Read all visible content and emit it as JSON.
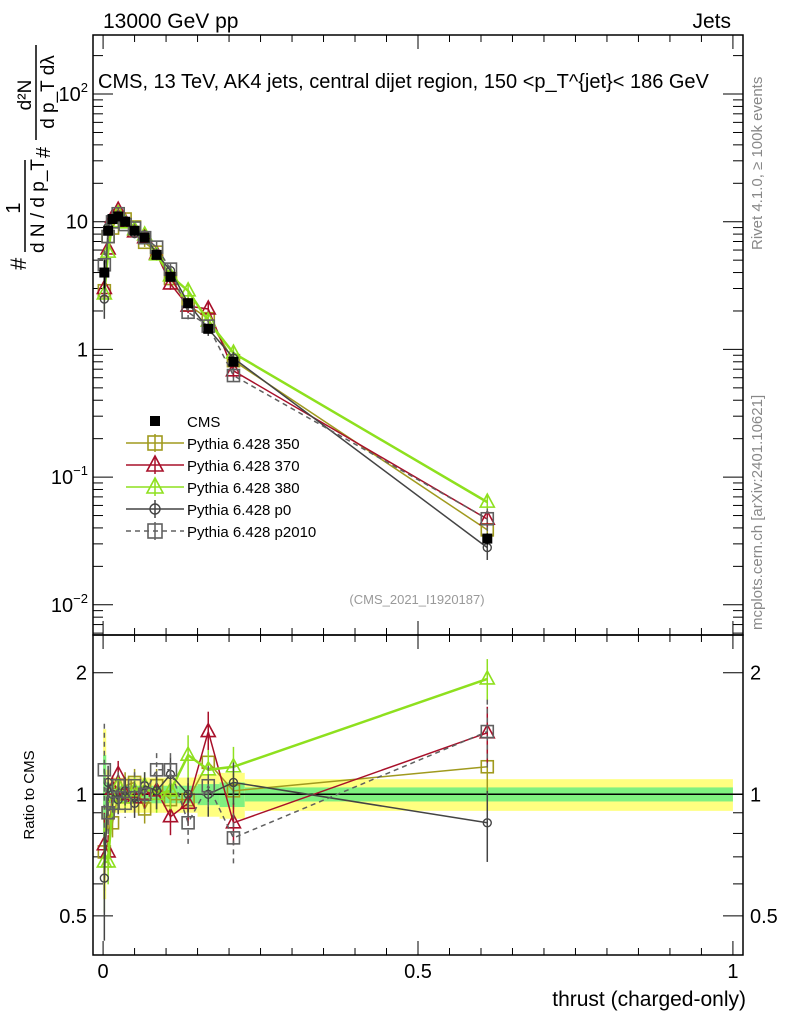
{
  "header": {
    "left": "13000 GeV pp",
    "right": "Jets"
  },
  "side_text": {
    "top": "Rivet 4.1.0, ≥ 100k events",
    "bottom": "mcplots.cern.ch [arXiv:2401.10621]"
  },
  "chart_data": [
    {
      "type": "line",
      "title": "CMS, 13 TeV, AK4 jets, central dijet region, 150 <p_T^{jet}< 186 GeV",
      "title_parts": {
        "main": "CMS, 13 TeV, AK4 jets, central dijet region, 150 <p",
        "sup": "{jet}",
        "sub": "T",
        "end": "}< 186 GeV"
      },
      "ylabel": {
        "num": "1",
        "den": "d N / d p_T",
        "hash": "#",
        "num2": "d²N",
        "den2": "d p_T dλ"
      },
      "yscale": "log",
      "ylim": [
        0.0058,
        290
      ],
      "xlim": [
        -0.016,
        1.016
      ],
      "yticks": [
        {
          "v": 100,
          "label": "10",
          "exp": "2"
        },
        {
          "v": 10,
          "label": "10",
          "exp": ""
        },
        {
          "v": 1,
          "label": "1",
          "exp": ""
        },
        {
          "v": 0.1,
          "label": "10",
          "exp": "−1"
        },
        {
          "v": 0.01,
          "label": "10",
          "exp": "−2"
        }
      ],
      "annotation": "(CMS_2021_I1920187)",
      "legend_position": "lower-left",
      "x": [
        0.002,
        0.008,
        0.015,
        0.024,
        0.035,
        0.05,
        0.066,
        0.085,
        0.107,
        0.135,
        0.167,
        0.207,
        0.61
      ],
      "cms": {
        "name": "CMS",
        "values": [
          4.0,
          8.5,
          10.5,
          11.0,
          10.0,
          8.5,
          7.5,
          5.5,
          3.7,
          2.3,
          1.45,
          0.8,
          0.033
        ],
        "rel_err": [
          0.25,
          0.08,
          0.05,
          0.05,
          0.05,
          0.05,
          0.05,
          0.05,
          0.05,
          0.05,
          0.06,
          0.07,
          0.1
        ]
      },
      "series": [
        {
          "name": "Pythia 6.428 350",
          "color": "#a09a1e",
          "marker": "square-open",
          "dashed": false,
          "ratio": [
            0.72,
            0.9,
            0.85,
            1.0,
            1.05,
            1.07,
            0.92,
            1.05,
            0.97,
            0.97,
            1.2,
            1.02,
            1.17
          ],
          "rel_err": [
            0.2,
            0.1,
            0.08,
            0.08,
            0.08,
            0.08,
            0.08,
            0.1,
            0.1,
            0.1,
            0.12,
            0.1,
            0.15
          ]
        },
        {
          "name": "Pythia 6.428 370",
          "color": "#a8102a",
          "marker": "triangle-open",
          "dashed": false,
          "ratio": [
            0.75,
            0.72,
            1.03,
            1.12,
            1.0,
            0.98,
            1.0,
            1.02,
            0.88,
            0.95,
            1.43,
            0.85,
            1.42
          ],
          "rel_err": [
            0.2,
            0.1,
            0.08,
            0.08,
            0.08,
            0.08,
            0.08,
            0.1,
            0.1,
            0.12,
            0.12,
            0.12,
            0.16
          ]
        },
        {
          "name": "Pythia 6.428 380",
          "color": "#8ee01e",
          "marker": "triangle-open",
          "dashed": false,
          "ratio": [
            0.68,
            0.68,
            0.95,
            1.05,
            0.98,
            1.02,
            1.05,
            1.0,
            1.02,
            1.25,
            1.15,
            1.17,
            1.93
          ],
          "rel_err": [
            0.25,
            0.12,
            0.08,
            0.08,
            0.08,
            0.08,
            0.08,
            0.1,
            0.1,
            0.12,
            0.12,
            0.12,
            0.12
          ]
        },
        {
          "name": "Pythia 6.428 p0",
          "color": "#444444",
          "marker": "circle-open",
          "dashed": false,
          "ratio": [
            0.62,
            1.07,
            1.0,
            0.97,
            1.02,
            0.95,
            1.05,
            1.02,
            1.12,
            1.0,
            1.0,
            1.07,
            0.85
          ],
          "rel_err": [
            0.3,
            0.1,
            0.08,
            0.08,
            0.08,
            0.08,
            0.08,
            0.1,
            0.1,
            0.1,
            0.12,
            0.12,
            0.2
          ]
        },
        {
          "name": "Pythia 6.428 p2010",
          "color": "#606060",
          "marker": "square-open",
          "dashed": true,
          "ratio": [
            1.15,
            0.9,
            0.95,
            1.05,
            0.95,
            1.05,
            1.0,
            1.15,
            1.15,
            0.85,
            1.05,
            0.78,
            1.43
          ],
          "rel_err": [
            0.3,
            0.12,
            0.08,
            0.08,
            0.08,
            0.08,
            0.08,
            0.1,
            0.1,
            0.12,
            0.12,
            0.15,
            0.2
          ]
        }
      ]
    },
    {
      "type": "line",
      "ylabel": "Ratio to CMS",
      "xlabel": "thrust (charged-only)",
      "yscale": "log",
      "ylim": [
        0.4,
        2.48
      ],
      "yticks": [
        {
          "v": 2,
          "label": "2"
        },
        {
          "v": 1,
          "label": "1"
        },
        {
          "v": 0.5,
          "label": "0.5"
        }
      ],
      "xticks": [
        {
          "v": 0,
          "label": "0"
        },
        {
          "v": 0.5,
          "label": "0.5"
        },
        {
          "v": 1,
          "label": "1"
        }
      ],
      "bands": {
        "bin_edges": [
          0,
          0.005,
          0.01,
          0.02,
          0.03,
          0.04,
          0.058,
          0.075,
          0.095,
          0.12,
          0.15,
          0.185,
          0.225,
          1.0
        ],
        "yellow_rel": [
          0.45,
          0.15,
          0.1,
          0.1,
          0.1,
          0.1,
          0.1,
          0.1,
          0.1,
          0.1,
          0.12,
          0.13,
          0.09
        ],
        "green_rel": [
          0.25,
          0.07,
          0.05,
          0.05,
          0.05,
          0.05,
          0.05,
          0.05,
          0.05,
          0.05,
          0.06,
          0.07,
          0.04
        ],
        "yellow_color": "#ffff80",
        "green_color": "#80f080"
      }
    }
  ]
}
